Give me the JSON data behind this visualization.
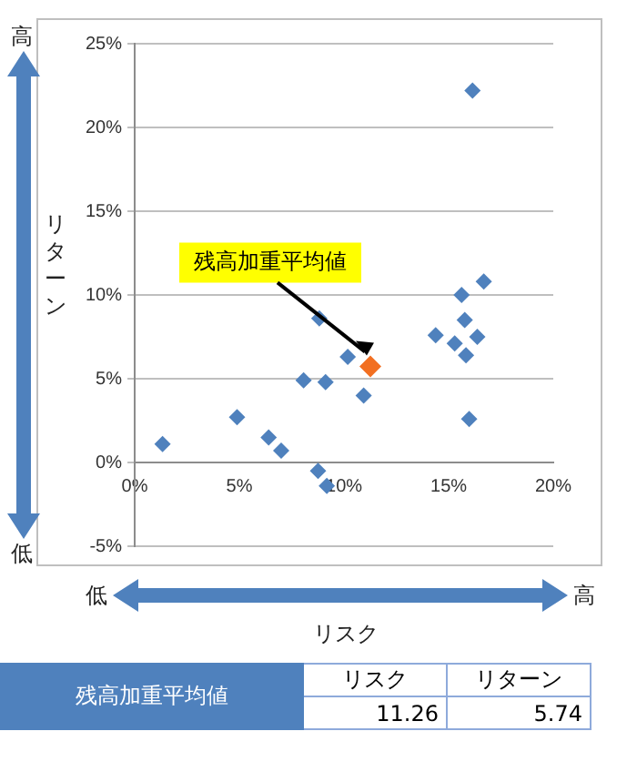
{
  "chart_data": {
    "type": "scatter",
    "ylabel": "リターン",
    "xlabel": "リスク",
    "xlim": [
      0,
      20
    ],
    "xticks": [
      {
        "value": 0,
        "label": "0%"
      },
      {
        "value": 5,
        "label": "5%"
      },
      {
        "value": 10,
        "label": "10%"
      },
      {
        "value": 15,
        "label": "15%"
      },
      {
        "value": 20,
        "label": "20%"
      }
    ],
    "ylim": [
      -5,
      25
    ],
    "yticks": [
      {
        "value": -5,
        "label": "-5%"
      },
      {
        "value": 0,
        "label": "0%"
      },
      {
        "value": 5,
        "label": "5%"
      },
      {
        "value": 10,
        "label": "10%"
      },
      {
        "value": 15,
        "label": "15%"
      },
      {
        "value": 20,
        "label": "20%"
      },
      {
        "value": 25,
        "label": "25%"
      }
    ],
    "grid": "y",
    "legend": false,
    "marker": "diamond",
    "series": [
      {
        "color": "#4f81bd",
        "x": [
          1.33,
          4.89,
          6.4,
          7.0,
          8.07,
          8.82,
          8.76,
          9.12,
          9.18,
          10.18,
          10.94,
          14.38,
          15.29,
          15.62,
          15.77,
          15.83,
          15.98,
          16.37,
          16.68,
          16.14
        ],
        "values": [
          1.1,
          2.7,
          1.5,
          0.7,
          4.9,
          8.6,
          -0.5,
          4.8,
          -1.4,
          6.3,
          4.0,
          7.6,
          7.1,
          10.0,
          8.5,
          6.4,
          2.6,
          7.5,
          10.8,
          22.2
        ]
      },
      {
        "color": "#f26f21",
        "x": [
          11.26
        ],
        "values": [
          5.74
        ]
      }
    ],
    "annotations": [
      {
        "text": "残高加重平均値",
        "x": 11.26,
        "y": 5.74
      },
      "高",
      "低",
      "低",
      "高",
      "残高加重平均値",
      "リスク",
      "リターン",
      "11.26",
      "5.74"
    ]
  }
}
